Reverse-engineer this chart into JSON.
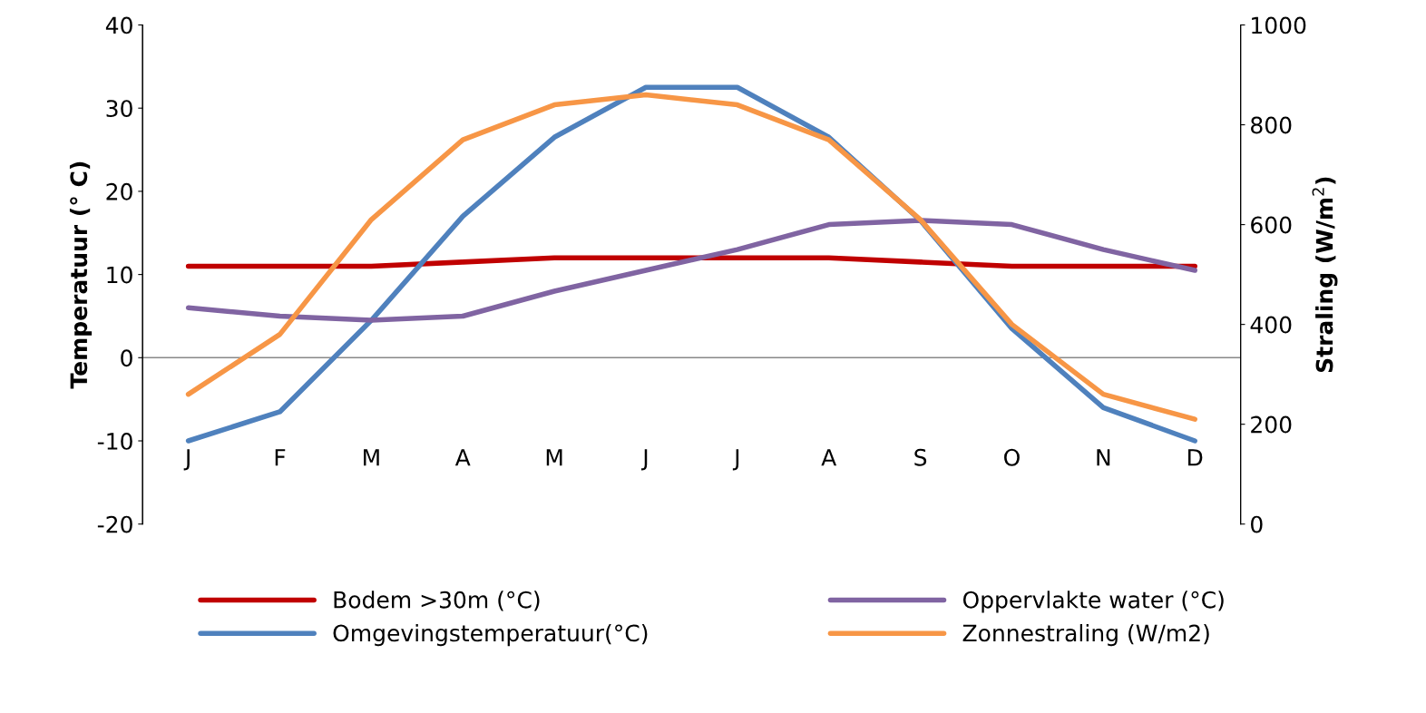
{
  "chart_data": {
    "type": "line",
    "ylabel": "Temperatuur (° C)",
    "y2label": "Straling (W/m$^{2}$)",
    "categories": [
      "J",
      "F",
      "M",
      "A",
      "M",
      "J",
      "J",
      "A",
      "S",
      "O",
      "N",
      "D"
    ],
    "series": [
      {
        "name": "Bodem >30m (°C)",
        "color": "#c00000",
        "values": [
          11,
          11,
          11,
          11.5,
          12,
          12,
          12,
          12,
          11.5,
          11,
          11,
          11
        ]
      },
      {
        "name": "Omgevingstemperatuur(°C)",
        "color": "#4f81bd",
        "values": [
          -10,
          -6.5,
          4.5,
          17,
          26.5,
          32.5,
          32.5,
          26.5,
          16.5,
          3.5,
          -6,
          -10
        ]
      },
      {
        "name": "Oppervlakte water (°C)",
        "color": "#8064a2",
        "values": [
          6,
          5,
          4.5,
          5,
          8,
          10.5,
          13,
          16,
          16.5,
          16,
          13,
          10.5
        ]
      },
      {
        "name": "Zonnestraling (W/m2)",
        "color": "#f79646",
        "axis": "y2",
        "values": [
          260,
          380,
          610,
          770,
          840,
          860,
          840,
          770,
          610,
          400,
          260,
          210
        ]
      }
    ],
    "ylim": [
      -20,
      40
    ],
    "yticks": [
      -20,
      -10,
      0,
      10,
      20,
      30,
      40
    ],
    "y2lim": [
      0,
      1000
    ],
    "y2ticks": [
      0,
      200,
      400,
      600,
      800,
      1000
    ],
    "ref_lines": [
      {
        "axis": "y",
        "value": 0,
        "color": "#888888"
      }
    ],
    "grid": false,
    "legend": "bottom",
    "marker": "none",
    "line_style": "solid"
  }
}
